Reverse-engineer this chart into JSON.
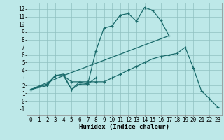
{
  "xlabel": "Humidex (Indice chaleur)",
  "bg_color": "#bde8e8",
  "grid_color": "#90c0c0",
  "line_color": "#1a6b6b",
  "xlim": [
    -0.5,
    23.5
  ],
  "ylim": [
    -1.8,
    12.8
  ],
  "xticks": [
    0,
    1,
    2,
    3,
    4,
    5,
    6,
    7,
    8,
    9,
    10,
    11,
    12,
    13,
    14,
    15,
    16,
    17,
    18,
    19,
    20,
    21,
    22,
    23
  ],
  "yticks": [
    -1,
    0,
    1,
    2,
    3,
    4,
    5,
    6,
    7,
    8,
    9,
    10,
    11,
    12
  ],
  "s1x": [
    0,
    2,
    3,
    4,
    5,
    6,
    7,
    8,
    9,
    10,
    11,
    12,
    13,
    14,
    15,
    16,
    17
  ],
  "s1y": [
    1.5,
    2.2,
    3.3,
    3.5,
    1.5,
    2.2,
    2.2,
    6.5,
    9.5,
    9.8,
    11.2,
    11.4,
    10.4,
    12.2,
    11.8,
    10.5,
    8.5
  ],
  "s2x": [
    0,
    2,
    3,
    4,
    5,
    6,
    7,
    8
  ],
  "s2y": [
    1.5,
    2.2,
    3.3,
    3.3,
    1.5,
    2.5,
    2.2,
    3.0
  ],
  "s3x": [
    0,
    2,
    3,
    4,
    5,
    6,
    7,
    8,
    9,
    10,
    11,
    12,
    13,
    14,
    15,
    16,
    17,
    18,
    19,
    20,
    21,
    22,
    23
  ],
  "s3y": [
    1.5,
    2.0,
    3.3,
    3.3,
    2.5,
    2.5,
    2.5,
    2.5,
    2.5,
    3.0,
    3.5,
    4.0,
    4.5,
    5.0,
    5.5,
    5.8,
    6.0,
    6.2,
    7.0,
    4.3,
    1.3,
    0.3,
    -0.8
  ],
  "s4x": [
    0,
    4,
    17
  ],
  "s4y": [
    1.5,
    3.3,
    8.5
  ],
  "tick_fontsize": 5.5,
  "xlabel_fontsize": 6.5
}
